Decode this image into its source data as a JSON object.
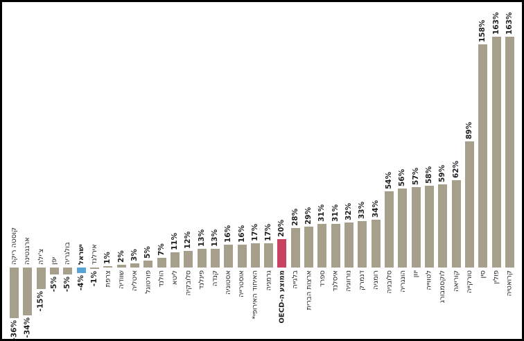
{
  "colors": {
    "bar_default": "#a59f8c",
    "bar_israel": "#58a4d8",
    "bar_oecd": "#c8435f",
    "text": "#1f1f1f",
    "background": "#ffffff",
    "border": "#000000"
  },
  "chart_data": {
    "type": "bar",
    "orientation": "vertical-columns",
    "value_format": "percent",
    "title": "",
    "xlabel": "",
    "ylabel": "",
    "ylim": [
      -40,
      170
    ],
    "grid": false,
    "legend": false,
    "baseline_value": 0,
    "label_rotation_deg": 90,
    "points": [
      {
        "label": "קוסטה ריקה",
        "value": -36,
        "display": "-36%",
        "highlight": "none"
      },
      {
        "label": "ארגנטינה",
        "value": -34,
        "display": "-34%",
        "highlight": "none"
      },
      {
        "label": "צ'ילה",
        "value": -15,
        "display": "-15%",
        "highlight": "none"
      },
      {
        "label": "יפן",
        "value": -5,
        "display": "-5%",
        "highlight": "none"
      },
      {
        "label": "בולגריה",
        "value": -5,
        "display": "-5%",
        "highlight": "none"
      },
      {
        "label": "ישראל",
        "value": -4,
        "display": "-4%",
        "highlight": "israel"
      },
      {
        "label": "אירלנד",
        "value": -1,
        "display": "-1%",
        "highlight": "none"
      },
      {
        "label": "צרפת",
        "value": 1,
        "display": "1%",
        "highlight": "none"
      },
      {
        "label": "שוודיה",
        "value": 2,
        "display": "2%",
        "highlight": "none"
      },
      {
        "label": "איטליה",
        "value": 3,
        "display": "3%",
        "highlight": "none"
      },
      {
        "label": "פורטוגל",
        "value": 5,
        "display": "5%",
        "highlight": "none"
      },
      {
        "label": "הולנד",
        "value": 7,
        "display": "7%",
        "highlight": "none"
      },
      {
        "label": "ליטא",
        "value": 11,
        "display": "11%",
        "highlight": "none"
      },
      {
        "label": "סלובקיה",
        "value": 12,
        "display": "12%",
        "highlight": "none"
      },
      {
        "label": "פינלנד",
        "value": 13,
        "display": "13%",
        "highlight": "none"
      },
      {
        "label": "קנדה",
        "value": 13,
        "display": "13%",
        "highlight": "none"
      },
      {
        "label": "אסטוניה",
        "value": 16,
        "display": "16%",
        "highlight": "none"
      },
      {
        "label": "אוסטרייה",
        "value": 16,
        "display": "16%",
        "highlight": "none"
      },
      {
        "label": "האיחוד האירופי*",
        "value": 17,
        "display": "17%",
        "highlight": "none"
      },
      {
        "label": "גרמניה",
        "value": 17,
        "display": "17%",
        "highlight": "none"
      },
      {
        "label": "ממוצע ה-OECD",
        "value": 20,
        "display": "20%",
        "highlight": "oecd"
      },
      {
        "label": "בלגייה",
        "value": 28,
        "display": "28%",
        "highlight": "none"
      },
      {
        "label": "ארצות הברית",
        "value": 29,
        "display": "29%",
        "highlight": "none"
      },
      {
        "label": "ספרד",
        "value": 31,
        "display": "31%",
        "highlight": "none"
      },
      {
        "label": "איסלנד",
        "value": 31,
        "display": "31%",
        "highlight": "none"
      },
      {
        "label": "נורווגיה",
        "value": 32,
        "display": "32%",
        "highlight": "none"
      },
      {
        "label": "דנמרק",
        "value": 33,
        "display": "33%",
        "highlight": "none"
      },
      {
        "label": "רומניה",
        "value": 34,
        "display": "34%",
        "highlight": "none"
      },
      {
        "label": "סלובניה",
        "value": 54,
        "display": "54%",
        "highlight": "none"
      },
      {
        "label": "הונגריה",
        "value": 56,
        "display": "56%",
        "highlight": "none"
      },
      {
        "label": "יוון",
        "value": 57,
        "display": "57%",
        "highlight": "none"
      },
      {
        "label": "לטווייה",
        "value": 58,
        "display": "58%",
        "highlight": "none"
      },
      {
        "label": "לוקסמבורג",
        "value": 59,
        "display": "59%",
        "highlight": "none"
      },
      {
        "label": "קוריאה",
        "value": 62,
        "display": "62%",
        "highlight": "none"
      },
      {
        "label": "טורקייה",
        "value": 89,
        "display": "89%",
        "highlight": "none"
      },
      {
        "label": "סין",
        "value": 158,
        "display": "158%",
        "highlight": "none"
      },
      {
        "label": "פולין",
        "value": 163,
        "display": "163%",
        "highlight": "none"
      },
      {
        "label": "קרואטיה",
        "value": 163,
        "display": "163%",
        "highlight": "none"
      }
    ]
  }
}
